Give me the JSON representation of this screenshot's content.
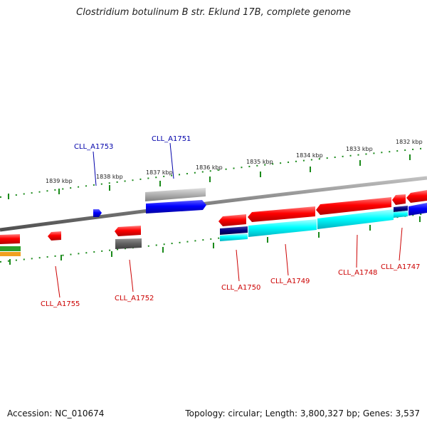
{
  "title": "Clostridium botulinum B str. Eklund 17B, complete genome",
  "footer": {
    "accession": "Accession: NC_010674",
    "summary": "Topology: circular; Length: 3,800,327 bp; Genes: 3,537"
  },
  "ruler_labels": [
    "1839 kbp",
    "1838 kbp",
    "1837 kbp",
    "1836 kbp",
    "1835 kbp",
    "1834 kbp",
    "1833 kbp",
    "1832 kbp"
  ],
  "gene_labels": {
    "CLL_A1753": "CLL_A1753",
    "CLL_A1751": "CLL_A1751",
    "CLL_A1755": "CLL_A1755",
    "CLL_A1752": "CLL_A1752",
    "CLL_A1750": "CLL_A1750",
    "CLL_A1749": "CLL_A1749",
    "CLL_A1748": "CLL_A1748",
    "CLL_A1747": "CLL_A1747"
  },
  "colors": {
    "red": "#e41a1c",
    "blue": "#0000ee",
    "navy": "#000080",
    "cyan": "#00e5ee",
    "gray": "#a0a0a0",
    "dark_gray": "#606060",
    "green": "#2ca02c",
    "label_blue": "#0000aa",
    "label_red": "#cc0000",
    "tick_green": "#1a8a1a"
  }
}
